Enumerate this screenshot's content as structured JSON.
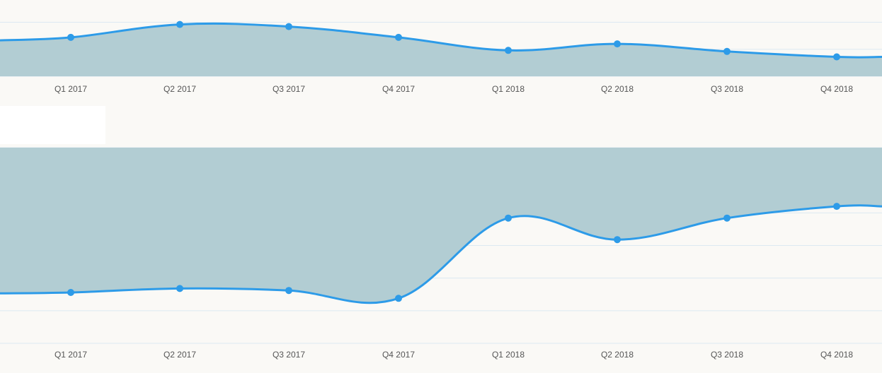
{
  "colors": {
    "background": "#faf9f6",
    "line": "#2d9be8",
    "fill": "#b2cdd3",
    "grid": "#dce9f2",
    "tick_text": "#555555",
    "card": "#ffffff"
  },
  "chart_data": [
    {
      "type": "area",
      "title": "",
      "xlabel": "",
      "ylabel": "",
      "categories": [
        "Q1 2017",
        "Q2 2017",
        "Q3 2017",
        "Q4 2017",
        "Q1 2018",
        "Q2 2018",
        "Q3 2018",
        "Q4 2018"
      ],
      "series": [
        {
          "values": [
            36,
            48,
            46,
            36,
            24,
            30,
            23,
            18
          ]
        }
      ],
      "ylim": [
        0,
        100
      ],
      "grid": true,
      "fill": "below"
    },
    {
      "type": "area",
      "title": "",
      "xlabel": "",
      "ylabel": "",
      "categories": [
        "Q1 2017",
        "Q2 2017",
        "Q3 2017",
        "Q4 2017",
        "Q1 2018",
        "Q2 2018",
        "Q3 2018",
        "Q4 2018"
      ],
      "series": [
        {
          "values": [
            26,
            28,
            27,
            23,
            64,
            53,
            64,
            70
          ]
        }
      ],
      "ylim": [
        0,
        100
      ],
      "grid": true,
      "fill": "above"
    }
  ]
}
